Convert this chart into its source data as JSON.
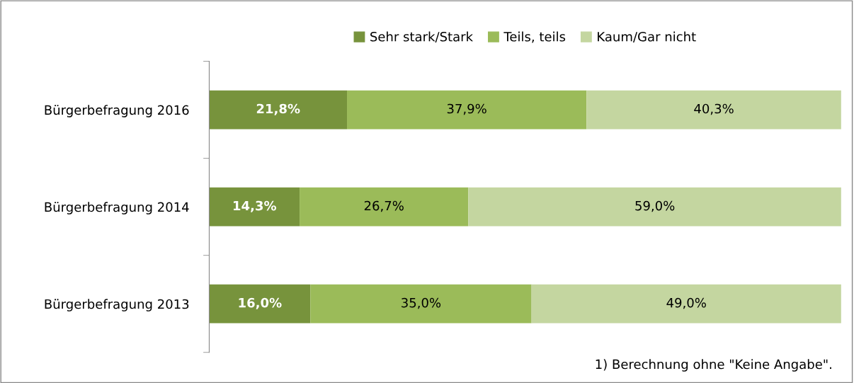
{
  "chart_data": {
    "type": "bar",
    "orientation": "horizontal",
    "stacked": true,
    "categories": [
      "Bürgerbefragung 2016",
      "Bürgerbefragung 2014",
      "Bürgerbefragung 2013"
    ],
    "series": [
      {
        "name": "Sehr stark/Stark",
        "color": "#77933c",
        "values": [
          21.8,
          14.3,
          16.0
        ],
        "value_labels": [
          "21,8%",
          "14,3%",
          "16,0%"
        ]
      },
      {
        "name": "Teils, teils",
        "color": "#9bbb59",
        "values": [
          37.9,
          26.7,
          35.0
        ],
        "value_labels": [
          "37,9%",
          "26,7%",
          "35,0%"
        ]
      },
      {
        "name": "Kaum/Gar nicht",
        "color": "#c4d6a0",
        "values": [
          40.3,
          59.0,
          49.0
        ],
        "value_labels": [
          "40,3%",
          "59,0%",
          "49,0%"
        ]
      }
    ],
    "tick_labels": "y",
    "legend": "top",
    "grid": false,
    "annotations": [
      "1) Berechnung ohne \"Keine Angabe\"."
    ]
  }
}
